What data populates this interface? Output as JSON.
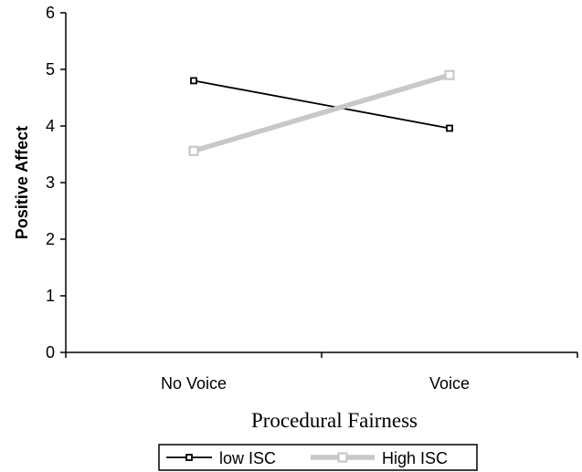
{
  "chart_data": {
    "type": "line",
    "categories": [
      "No Voice",
      "Voice"
    ],
    "ylabel": "Positive Affect",
    "xlabel": "Procedural Fairness",
    "ylim": [
      0,
      6
    ],
    "yticks": [
      "0",
      "1",
      "2",
      "3",
      "4",
      "5",
      "6"
    ],
    "grid": false,
    "legend_position": "bottom",
    "series": [
      {
        "name": "low ISC",
        "values": [
          4.8,
          3.96
        ],
        "color": "#000000",
        "marker": "square"
      },
      {
        "name": "High ISC",
        "values": [
          3.56,
          4.9
        ],
        "color": "#c8c8c8",
        "marker": "square"
      }
    ]
  }
}
